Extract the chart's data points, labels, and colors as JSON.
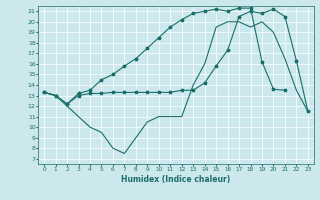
{
  "xlabel": "Humidex (Indice chaleur)",
  "xlim": [
    -0.5,
    23.5
  ],
  "ylim": [
    6.5,
    21.5
  ],
  "yticks": [
    7,
    8,
    9,
    10,
    11,
    12,
    13,
    14,
    15,
    16,
    17,
    18,
    19,
    20,
    21
  ],
  "xticks": [
    0,
    1,
    2,
    3,
    4,
    5,
    6,
    7,
    8,
    9,
    10,
    11,
    12,
    13,
    14,
    15,
    16,
    17,
    18,
    19,
    20,
    21,
    22,
    23
  ],
  "bg_color": "#cce8ec",
  "line_color": "#1a6e6a",
  "series": [
    {
      "x": [
        0,
        1,
        2,
        3,
        4,
        5,
        6,
        7,
        8,
        9,
        10,
        11,
        12,
        13,
        14,
        15,
        16,
        17,
        18,
        19,
        20,
        21,
        22,
        23
      ],
      "y": [
        13.3,
        13.0,
        12.0,
        11.0,
        10.0,
        9.5,
        8.0,
        7.5,
        9.0,
        10.5,
        11.0,
        11.0,
        11.0,
        14.0,
        16.0,
        19.5,
        20.0,
        20.0,
        19.5,
        20.0,
        19.0,
        16.5,
        13.5,
        11.5
      ],
      "has_marker": false
    },
    {
      "x": [
        0,
        1,
        2,
        3,
        4,
        5,
        6,
        7,
        8,
        9,
        10,
        11,
        12,
        13,
        14,
        15,
        16,
        17,
        18,
        19,
        20,
        21,
        22,
        23
      ],
      "y": [
        13.3,
        13.0,
        12.2,
        13.0,
        13.2,
        13.2,
        13.3,
        13.3,
        13.3,
        13.3,
        13.3,
        13.3,
        13.5,
        13.5,
        14.2,
        15.8,
        17.3,
        20.5,
        21.0,
        20.8,
        21.2,
        20.5,
        16.3,
        11.5
      ],
      "has_marker": true
    },
    {
      "x": [
        0,
        1,
        2,
        3,
        4,
        5,
        6,
        7,
        8,
        9,
        10,
        11,
        12,
        13,
        14,
        15,
        16,
        17,
        18,
        19,
        20,
        21
      ],
      "y": [
        13.3,
        13.0,
        12.2,
        13.2,
        13.5,
        14.5,
        15.0,
        15.8,
        16.5,
        17.5,
        18.5,
        19.5,
        20.2,
        20.8,
        21.0,
        21.2,
        21.0,
        21.3,
        21.3,
        16.2,
        13.6,
        13.5
      ],
      "has_marker": true
    }
  ]
}
